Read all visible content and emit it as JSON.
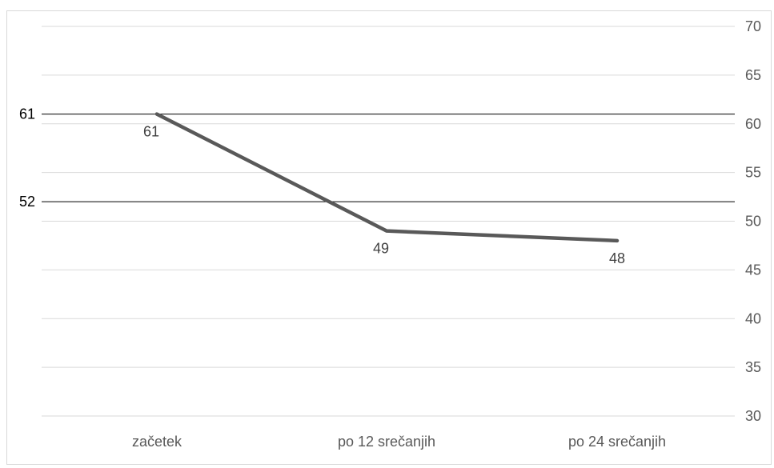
{
  "chart_data": {
    "type": "line",
    "categories": [
      "začetek",
      "po 12 srečanjih",
      "po 24 srečanjih"
    ],
    "series": [
      {
        "values": [
          61,
          49,
          48
        ],
        "color": "#595959"
      }
    ],
    "data_labels": [
      "61",
      "49",
      "48"
    ],
    "y_axis_position": "right",
    "ylim": [
      30,
      70
    ],
    "y_ticks": [
      30,
      35,
      40,
      45,
      50,
      55,
      60,
      65,
      70
    ],
    "grid": true,
    "reference_lines": [
      {
        "value": 61,
        "label": "61",
        "color": "#000000"
      },
      {
        "value": 52,
        "label": "52",
        "color": "#000000"
      }
    ]
  }
}
